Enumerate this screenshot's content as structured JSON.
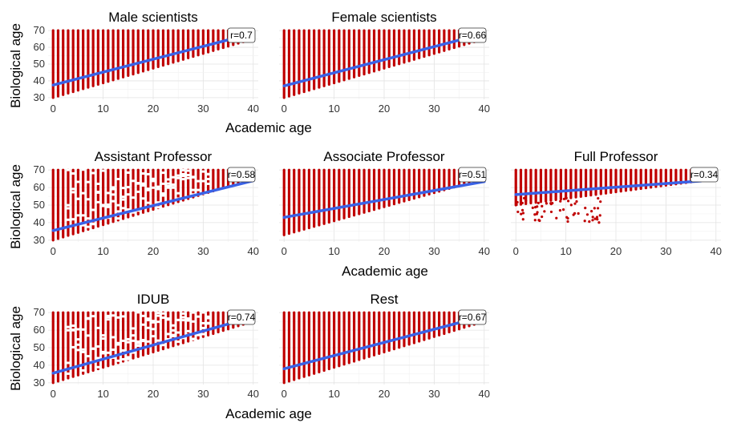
{
  "chart_data": {
    "type": "scatter",
    "xlabel": "Academic age",
    "ylabel": "Biological age",
    "x_ticks": [
      0,
      10,
      20,
      30,
      40
    ],
    "y_ticks": [
      30,
      40,
      50,
      60,
      70
    ],
    "xlim": [
      -1,
      41
    ],
    "ylim": [
      29,
      71
    ],
    "colors": {
      "points": "#c00000",
      "fit_line": "#3a62e6",
      "label_box": "#ffffff"
    },
    "panels": [
      {
        "title": "Male scientists",
        "r_label": "r=0.7",
        "fit": {
          "intercept": 37.5,
          "slope": 0.77,
          "x_end": 37
        },
        "min_bio_offset": 29,
        "max_x": 40,
        "lower_envelope_start": 30,
        "sparse": false
      },
      {
        "title": "Female scientists",
        "r_label": "r=0.66",
        "fit": {
          "intercept": 37.0,
          "slope": 0.78,
          "x_end": 36
        },
        "min_bio_offset": 29,
        "max_x": 40,
        "lower_envelope_start": 30,
        "sparse": false
      },
      {
        "title": "Assistant Professor",
        "r_label": "r=0.58",
        "fit": {
          "intercept": 35.5,
          "slope": 0.71,
          "x_end": 40
        },
        "min_bio_offset": 29,
        "max_x": 40,
        "lower_envelope_start": 30,
        "sparse": true
      },
      {
        "title": "Associate Professor",
        "r_label": "r=0.51",
        "fit": {
          "intercept": 43.0,
          "slope": 0.51,
          "x_end": 40
        },
        "min_bio_offset": 29,
        "max_x": 40,
        "lower_envelope_start": 33,
        "sparse": false
      },
      {
        "title": "Full Professor",
        "r_label": "r=0.34",
        "fit": {
          "intercept": 56.0,
          "slope": 0.21,
          "x_end": 37
        },
        "min_bio_offset": 29,
        "max_x": 40,
        "lower_envelope_start": 50,
        "sparse": false
      },
      {
        "title": "IDUB",
        "r_label": "r=0.74",
        "fit": {
          "intercept": 35.5,
          "slope": 0.8,
          "x_end": 37
        },
        "min_bio_offset": 29,
        "max_x": 40,
        "lower_envelope_start": 30,
        "sparse": true
      },
      {
        "title": "Rest",
        "r_label": "r=0.67",
        "fit": {
          "intercept": 38.0,
          "slope": 0.75,
          "x_end": 37
        },
        "min_bio_offset": 29,
        "max_x": 40,
        "lower_envelope_start": 30,
        "sparse": false
      }
    ]
  }
}
